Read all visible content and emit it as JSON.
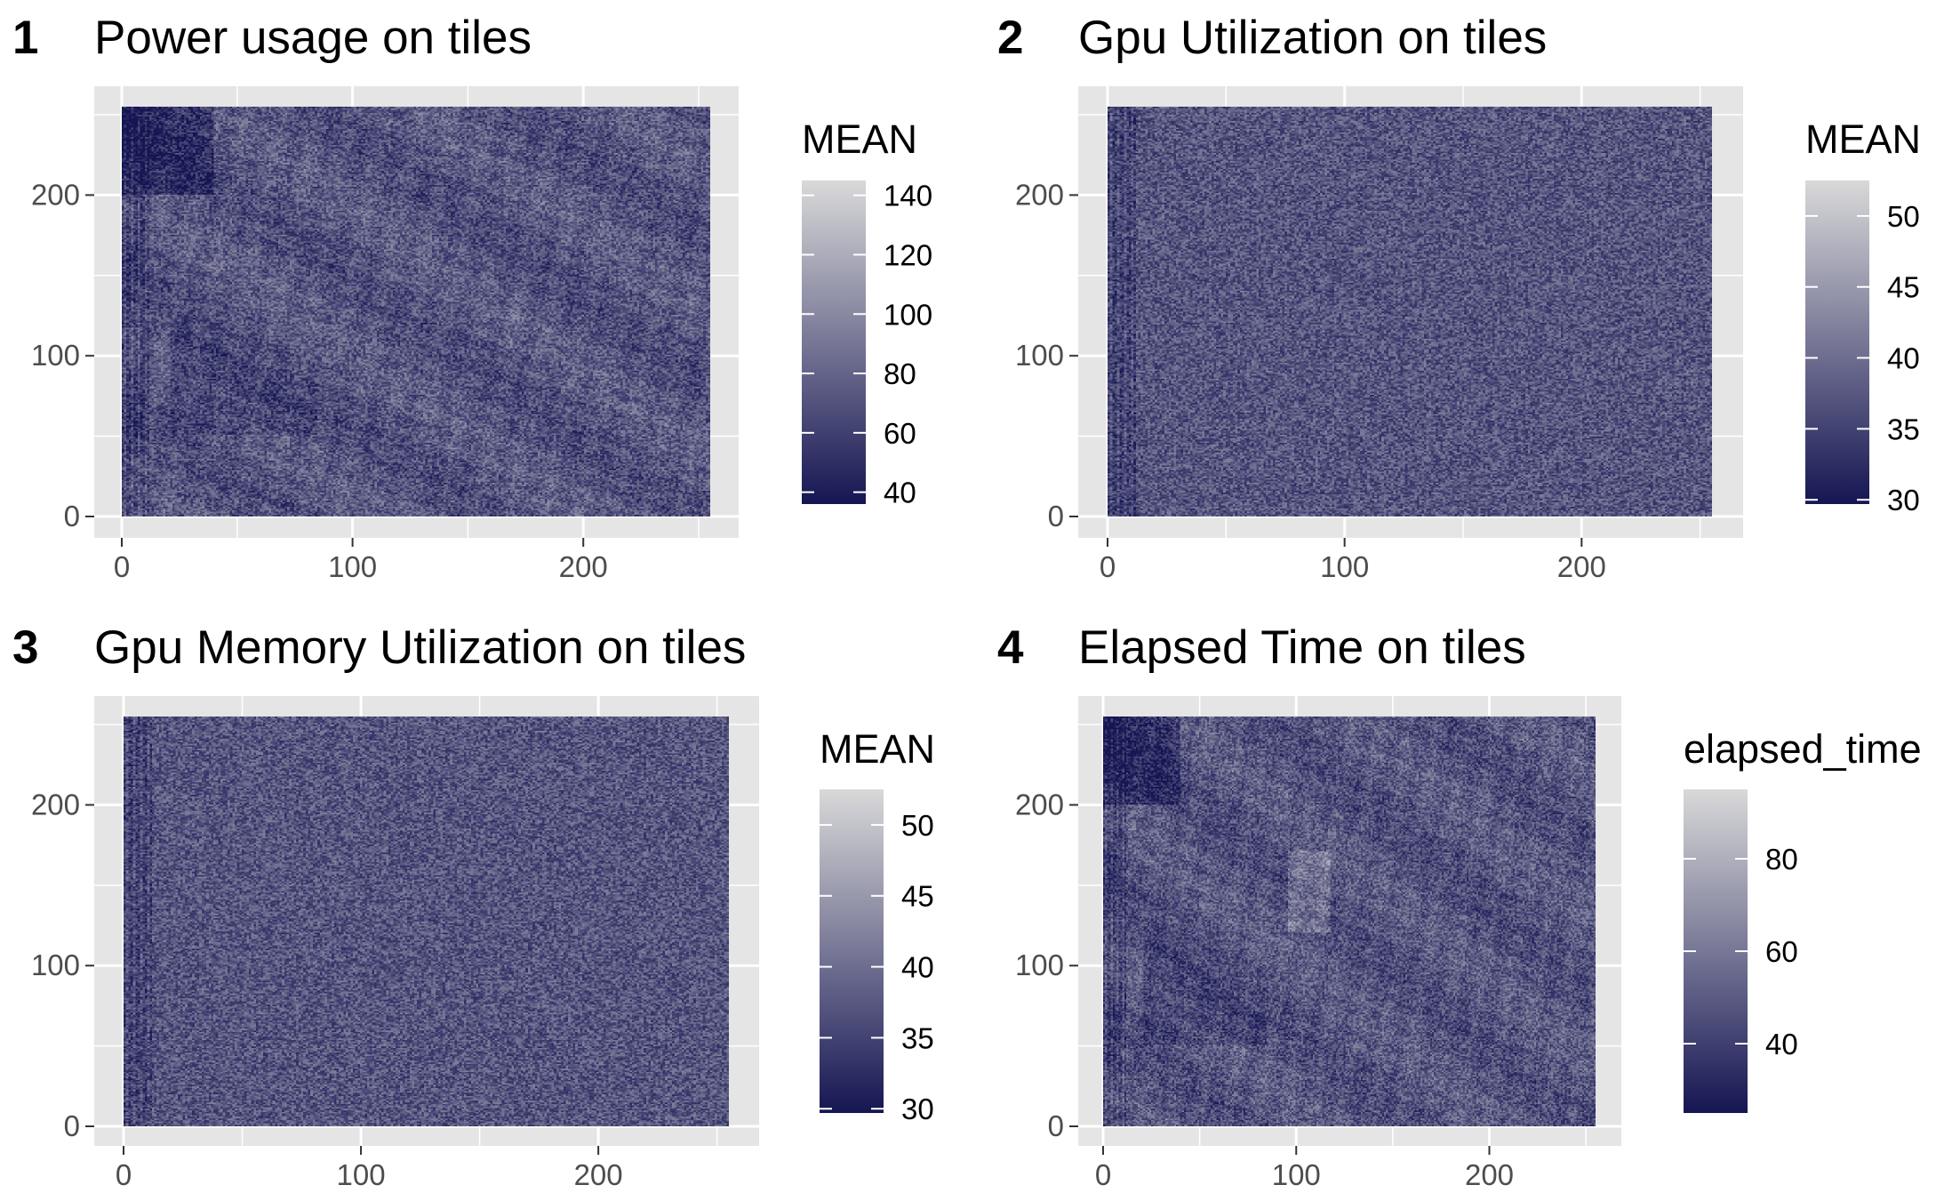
{
  "colors": {
    "low": "#151553",
    "high": "#d9d9d9",
    "panel_background": "#e5e5e5",
    "grid": "#ffffff",
    "tick_text": "#4d4d4d"
  },
  "chart_data": [
    {
      "tag": "1",
      "type": "heatmap",
      "title": "Power usage on tiles",
      "xlabel": "",
      "ylabel": "",
      "xlim": [
        0,
        255
      ],
      "ylim": [
        0,
        255
      ],
      "xticks": [
        0,
        100,
        200
      ],
      "yticks": [
        0,
        100,
        200
      ],
      "xtick_labels": [
        "0",
        "100",
        "200"
      ],
      "ytick_labels": [
        "0",
        "100",
        "200"
      ],
      "grid": true,
      "legend": {
        "title": "MEAN",
        "position": "right",
        "min": 36,
        "max": 145,
        "breaks": [
          40,
          60,
          80,
          100,
          120,
          140
        ],
        "labels": [
          "40",
          "60",
          "80",
          "100",
          "120",
          "140"
        ]
      },
      "value_range": [
        36,
        145
      ],
      "features": "dark block at top-left (x 0–40, y 200–255), dark triangular region around x 20–85, y 50–125, city-map like texture"
    },
    {
      "tag": "2",
      "type": "heatmap",
      "title": "Gpu Utilization on tiles",
      "xlabel": "",
      "ylabel": "",
      "xlim": [
        0,
        255
      ],
      "ylim": [
        0,
        255
      ],
      "xticks": [
        0,
        100,
        200
      ],
      "yticks": [
        0,
        100,
        200
      ],
      "xtick_labels": [
        "0",
        "100",
        "200"
      ],
      "ytick_labels": [
        "0",
        "100",
        "200"
      ],
      "grid": true,
      "legend": {
        "title": "MEAN",
        "position": "right",
        "min": 29.7,
        "max": 52.5,
        "breaks": [
          30,
          35,
          40,
          45,
          50
        ],
        "labels": [
          "30",
          "35",
          "40",
          "45",
          "50"
        ]
      },
      "value_range": [
        29.7,
        52.5
      ],
      "features": "fine noisy texture, dark vertical bands near x 0–12"
    },
    {
      "tag": "3",
      "type": "heatmap",
      "title": "Gpu Memory Utilization on tiles",
      "xlabel": "",
      "ylabel": "",
      "xlim": [
        0,
        255
      ],
      "ylim": [
        0,
        255
      ],
      "xticks": [
        0,
        100,
        200
      ],
      "yticks": [
        0,
        100,
        200
      ],
      "xtick_labels": [
        "0",
        "100",
        "200"
      ],
      "ytick_labels": [
        "0",
        "100",
        "200"
      ],
      "grid": true,
      "legend": {
        "title": "MEAN",
        "position": "right",
        "min": 29.7,
        "max": 52.5,
        "breaks": [
          30,
          35,
          40,
          45,
          50
        ],
        "labels": [
          "30",
          "35",
          "40",
          "45",
          "50"
        ]
      },
      "value_range": [
        29.7,
        52.5
      ],
      "features": "fine noisy texture, dark vertical bands near x 0–12"
    },
    {
      "tag": "4",
      "type": "heatmap",
      "title": "Elapsed Time on tiles",
      "xlabel": "",
      "ylabel": "",
      "xlim": [
        0,
        255
      ],
      "ylim": [
        0,
        255
      ],
      "xticks": [
        0,
        100,
        200
      ],
      "yticks": [
        0,
        100,
        200
      ],
      "xtick_labels": [
        "0",
        "100",
        "200"
      ],
      "ytick_labels": [
        "0",
        "100",
        "200"
      ],
      "grid": true,
      "legend": {
        "title": "elapsed_time",
        "position": "right",
        "min": 25,
        "max": 95,
        "breaks": [
          40,
          60,
          80
        ],
        "labels": [
          "40",
          "60",
          "80"
        ]
      },
      "value_range": [
        25,
        95
      ],
      "features": "dark block at top-left (x 0–40, y 200–255), dark triangular region, bright band around x 95–115, y 130–170, city-map like texture"
    }
  ]
}
